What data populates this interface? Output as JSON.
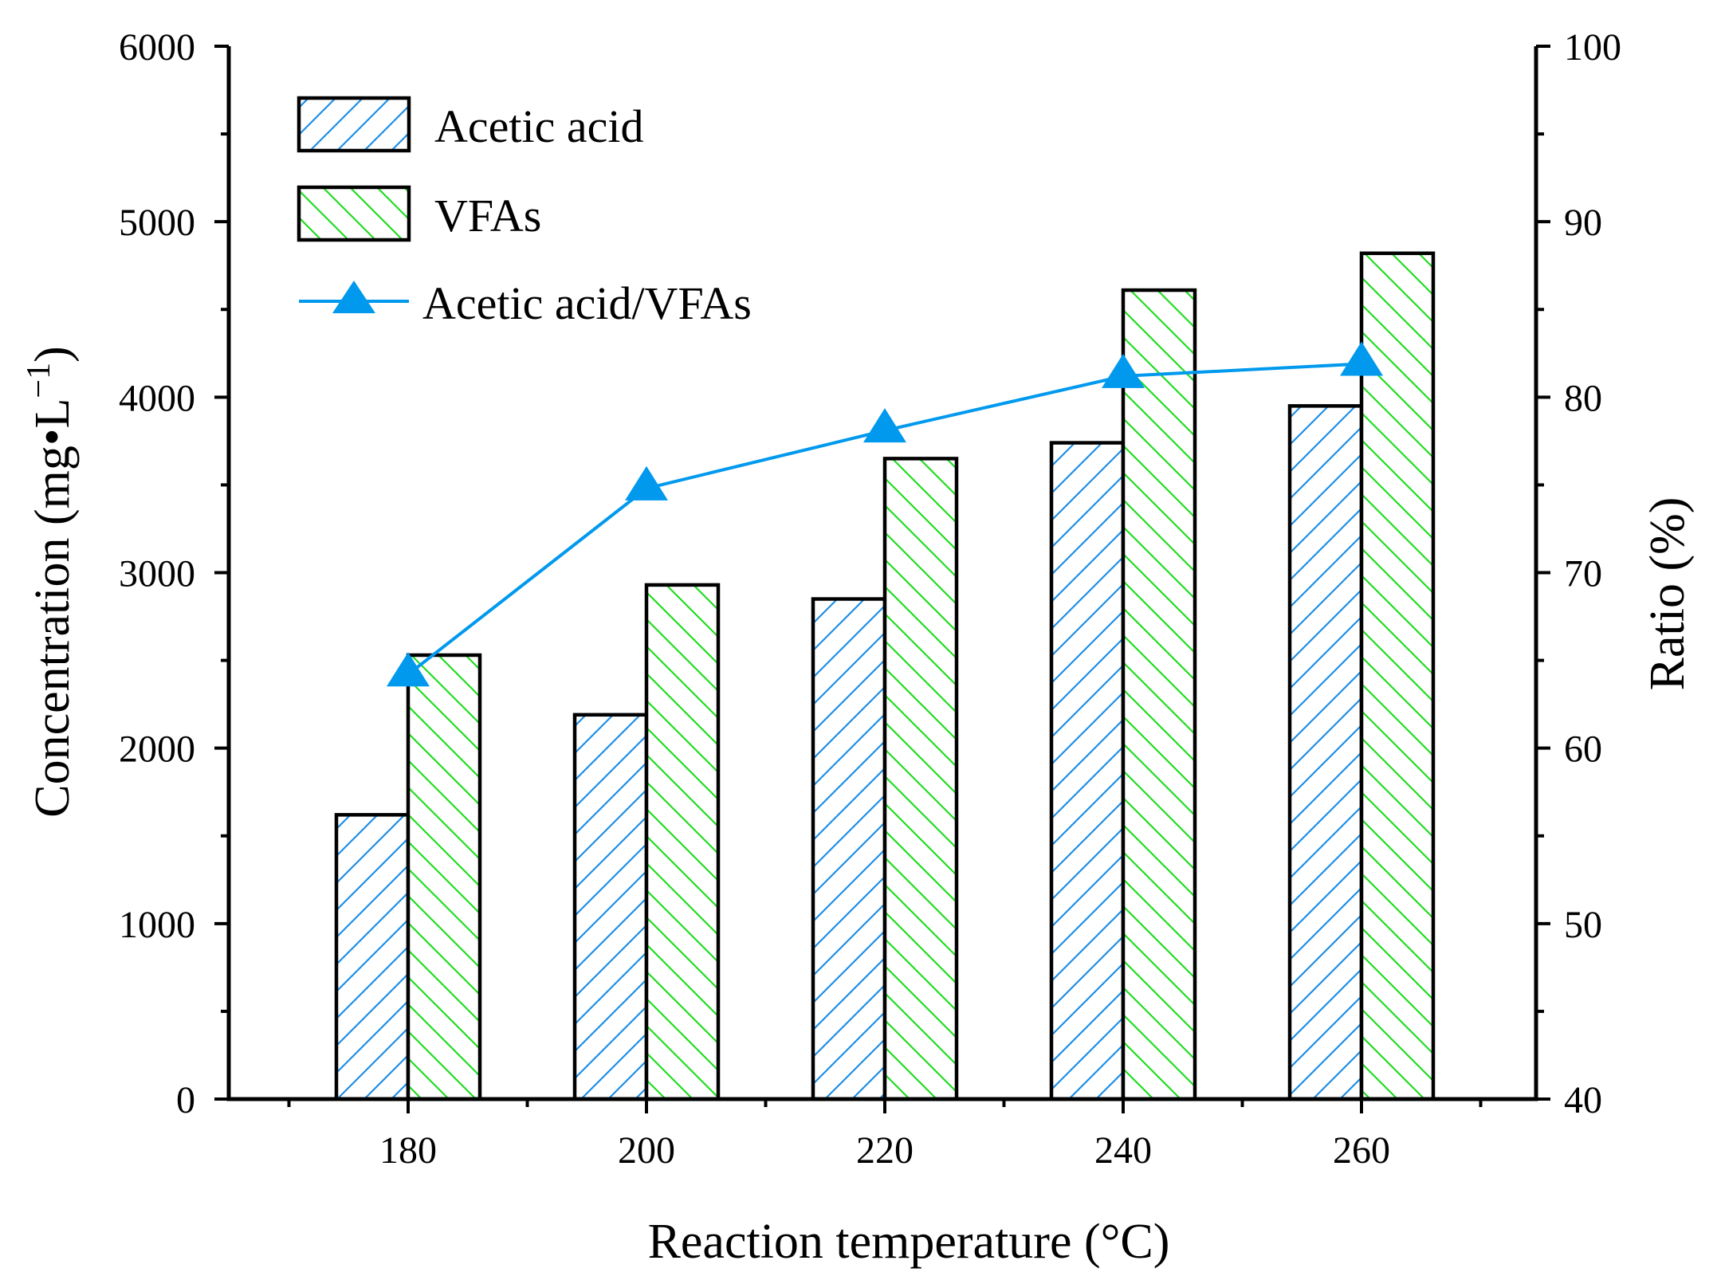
{
  "chart_data": {
    "type": "bar",
    "xlabel": "Reaction temperature (°C)",
    "ylabel": "Concentration (mg•L",
    "ylabel_sup": "−1",
    "ylabel_close": ")",
    "y2label": "Ratio (%)",
    "categories": [
      "180",
      "200",
      "220",
      "240",
      "260"
    ],
    "ylim": [
      0,
      6000
    ],
    "yticks": [
      "0",
      "1000",
      "2000",
      "3000",
      "4000",
      "5000",
      "6000"
    ],
    "y2lim": [
      40,
      100
    ],
    "y2ticks": [
      "40",
      "50",
      "60",
      "70",
      "80",
      "90",
      "100"
    ],
    "series": [
      {
        "name": "Acetic acid",
        "axis": "left",
        "kind": "bar",
        "color": "#1e8fe6",
        "values": [
          1620,
          2190,
          2850,
          3740,
          3950
        ]
      },
      {
        "name": "VFAs",
        "axis": "left",
        "kind": "bar",
        "color": "#22dd22",
        "values": [
          2530,
          2930,
          3650,
          4610,
          4820
        ]
      },
      {
        "name": "Acetic acid/VFAs",
        "axis": "right",
        "kind": "line",
        "marker": "triangle",
        "color": "#0099ee",
        "values": [
          64.2,
          74.8,
          78.1,
          81.2,
          81.9
        ]
      }
    ],
    "legend_position": "top-left"
  }
}
